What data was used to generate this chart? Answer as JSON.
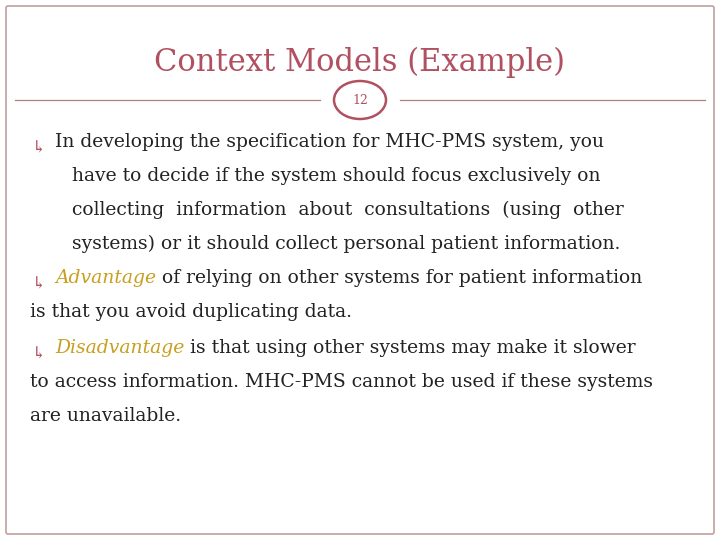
{
  "title": "Context Models (Example)",
  "slide_number": "12",
  "background_color": "#ffffff",
  "border_color": "#c0a0a0",
  "title_color": "#b05060",
  "slide_num_color": "#b05060",
  "bullet_color": "#b05060",
  "advantage_color": "#c8a020",
  "disadvantage_color": "#c8a020",
  "body_color": "#222222",
  "title_fontsize": 22,
  "body_fontsize": 13.5,
  "num_fontsize": 9,
  "bullet_symbol": "↰",
  "bullet1_line1": "In developing the specification for MHC-PMS system, you",
  "bullet1_line2": "have to decide if the system should focus exclusively on",
  "bullet1_line3": "collecting  information  about  consultations  (using  other",
  "bullet1_line4": "systems) or it should collect personal patient information.",
  "bullet2_colored": "Advantage",
  "bullet2_rest": " of relying on other systems for patient information",
  "bullet2_line2": "is that you avoid duplicating data.",
  "bullet3_colored": "Disadvantage",
  "bullet3_rest": " is that using other systems may make it slower",
  "bullet3_line2": "to access information. MHC-PMS cannot be used if these systems",
  "bullet3_line3": "are unavailable.",
  "divider_color": "#b08080",
  "circle_face": "#ffffff",
  "circle_edge": "#b05060"
}
